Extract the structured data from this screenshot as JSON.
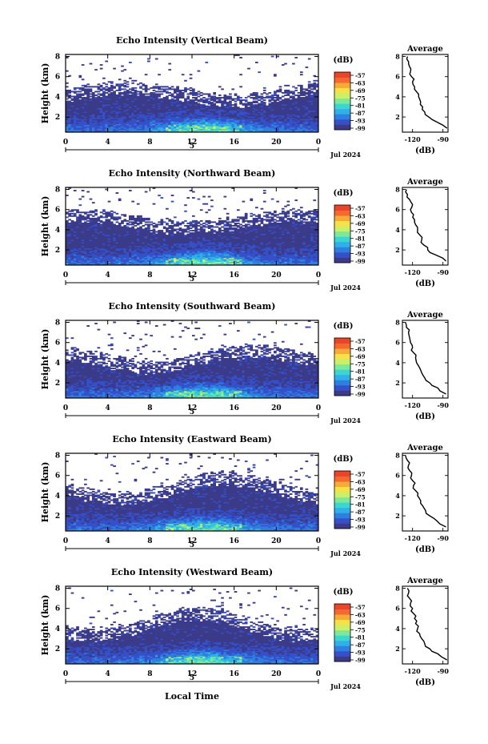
{
  "colorbar": {
    "unit": "(dB)",
    "ticks": [
      "-57",
      "-63",
      "-69",
      "-75",
      "-81",
      "-87",
      "-93",
      "-99"
    ],
    "colors": [
      "#3b3b8a",
      "#3550c8",
      "#2f7fe0",
      "#2fb0e8",
      "#3cd6cc",
      "#7ee89a",
      "#c8f06a",
      "#f7e048",
      "#f9a83a",
      "#f46a2e",
      "#e8452a"
    ]
  },
  "shared": {
    "x_ticks": [
      "0",
      "4",
      "8",
      "12",
      "16",
      "20",
      "0"
    ],
    "day_label": "5",
    "date_label": "Jul 2024",
    "ylabel": "Height (km)",
    "y_ticks": [
      "2",
      "4",
      "6",
      "8"
    ],
    "avg_title": "Average",
    "avg_xticks": [
      "-120",
      "-90"
    ],
    "avg_unit": "(dB)",
    "bottom_label": "Local Time"
  },
  "chart_data": [
    {
      "type": "heatmap",
      "title": "Echo Intensity (Vertical Beam)",
      "xlabel": "",
      "ylabel": "Height (km)",
      "xlim": [
        0,
        24
      ],
      "ylim": [
        0.5,
        8.2
      ],
      "top_base": 3.5,
      "avg_profile": {
        "type": "line",
        "title": "Average",
        "xlabel": "(dB)",
        "xlim": [
          -130,
          -85
        ],
        "ylim": [
          0.5,
          8.2
        ],
        "height": [
          0.9,
          1.5,
          2.0,
          2.5,
          3.0,
          3.5,
          4.0,
          4.5,
          5.0,
          5.5,
          6.0,
          6.5,
          7.0,
          7.5,
          8.0
        ],
        "value": [
          -86,
          -96,
          -104,
          -108,
          -110,
          -112,
          -114,
          -116,
          -118,
          -120,
          -121,
          -122,
          -123,
          -124,
          -125
        ]
      }
    },
    {
      "type": "heatmap",
      "title": "Echo Intensity (Northward Beam)",
      "xlabel": "",
      "ylabel": "Height (km)",
      "xlim": [
        0,
        24
      ],
      "ylim": [
        0.5,
        8.2
      ],
      "top_base": 4.0,
      "avg_profile": {
        "type": "line",
        "title": "Average",
        "xlabel": "(dB)",
        "xlim": [
          -130,
          -85
        ],
        "ylim": [
          0.5,
          8.2
        ],
        "height": [
          0.9,
          1.5,
          2.0,
          2.5,
          3.0,
          3.5,
          4.0,
          4.5,
          5.0,
          5.5,
          6.0,
          6.5,
          7.0,
          7.5,
          8.0
        ],
        "value": [
          -87,
          -97,
          -105,
          -109,
          -111,
          -113,
          -115,
          -117,
          -118,
          -119,
          -122,
          -120,
          -123,
          -125,
          -126
        ]
      }
    },
    {
      "type": "heatmap",
      "title": "Echo Intensity (Southward Beam)",
      "xlabel": "",
      "ylabel": "Height (km)",
      "xlim": [
        0,
        24
      ],
      "ylim": [
        0.5,
        8.2
      ],
      "top_base": 3.6,
      "avg_profile": {
        "type": "line",
        "title": "Average",
        "xlabel": "(dB)",
        "xlim": [
          -130,
          -85
        ],
        "ylim": [
          0.5,
          8.2
        ],
        "height": [
          0.9,
          1.5,
          2.0,
          2.5,
          3.0,
          3.5,
          4.0,
          4.5,
          5.0,
          5.5,
          6.0,
          6.5,
          7.0,
          7.5,
          8.0
        ],
        "value": [
          -87,
          -95,
          -103,
          -108,
          -111,
          -113,
          -116,
          -117,
          -119,
          -120,
          -122,
          -123,
          -124,
          -126,
          -127
        ]
      }
    },
    {
      "type": "heatmap",
      "title": "Echo Intensity (Eastward Beam)",
      "xlabel": "",
      "ylabel": "Height (km)",
      "xlim": [
        0,
        24
      ],
      "ylim": [
        0.5,
        8.2
      ],
      "top_base": 3.9,
      "avg_profile": {
        "type": "line",
        "title": "Average",
        "xlabel": "(dB)",
        "xlim": [
          -130,
          -85
        ],
        "ylim": [
          0.5,
          8.2
        ],
        "height": [
          0.9,
          1.5,
          2.0,
          2.5,
          3.0,
          3.5,
          4.0,
          4.5,
          5.0,
          5.5,
          6.0,
          6.5,
          7.0,
          7.5,
          8.0
        ],
        "value": [
          -87,
          -96,
          -103,
          -107,
          -110,
          -112,
          -115,
          -117,
          -119,
          -120,
          -121,
          -123,
          -124,
          -125,
          -127
        ]
      }
    },
    {
      "type": "heatmap",
      "title": "Echo Intensity (Westward Beam)",
      "xlabel": "Local Time",
      "ylabel": "Height (km)",
      "xlim": [
        0,
        24
      ],
      "ylim": [
        0.5,
        8.2
      ],
      "top_base": 3.6,
      "avg_profile": {
        "type": "line",
        "title": "Average",
        "xlabel": "(dB)",
        "xlim": [
          -130,
          -85
        ],
        "ylim": [
          0.5,
          8.2
        ],
        "height": [
          0.9,
          1.5,
          2.0,
          2.5,
          3.0,
          3.5,
          4.0,
          4.5,
          5.0,
          5.5,
          6.0,
          6.5,
          7.0,
          7.5,
          8.0
        ],
        "value": [
          -86,
          -95,
          -103,
          -108,
          -111,
          -113,
          -115,
          -117,
          -118,
          -119,
          -120,
          -122,
          -123,
          -124,
          -125
        ]
      }
    }
  ]
}
